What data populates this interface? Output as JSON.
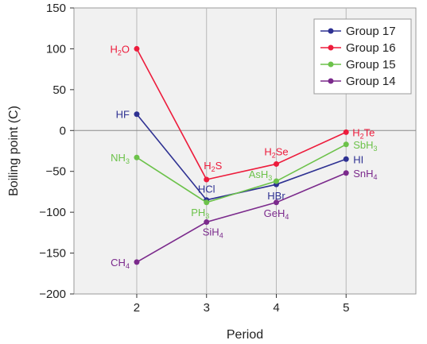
{
  "chart_data": {
    "type": "line",
    "title": "",
    "xlabel": "Period",
    "ylabel": "Boiling point (C)",
    "x": [
      2,
      3,
      4,
      5
    ],
    "xlim": [
      1.1,
      6
    ],
    "ylim": [
      -200,
      150
    ],
    "xticks": [
      "2",
      "3",
      "4",
      "5"
    ],
    "yticks": [
      "150",
      "100",
      "50",
      "0",
      "−50",
      "−100",
      "−150",
      "−200"
    ],
    "grid": "vertical",
    "legend_position": "top-right",
    "series": [
      {
        "name": "Group 17",
        "color": "#2e3192",
        "values": [
          20,
          -85,
          -66,
          -35
        ],
        "point_labels": [
          [
            {
              "t": "HF"
            }
          ],
          [
            {
              "t": "HCl"
            }
          ],
          [
            {
              "t": "HBr"
            }
          ],
          [
            {
              "t": "HI"
            }
          ]
        ]
      },
      {
        "name": "Group 16",
        "color": "#ed1c3c",
        "values": [
          100,
          -60,
          -41,
          -2
        ],
        "point_labels": [
          [
            {
              "t": "H"
            },
            {
              "t": "2",
              "sub": true
            },
            {
              "t": "O"
            }
          ],
          [
            {
              "t": "H"
            },
            {
              "t": "2",
              "sub": true
            },
            {
              "t": "S"
            }
          ],
          [
            {
              "t": "H"
            },
            {
              "t": "2",
              "sub": true
            },
            {
              "t": "Se"
            }
          ],
          [
            {
              "t": "H"
            },
            {
              "t": "2",
              "sub": true
            },
            {
              "t": "Te"
            }
          ]
        ]
      },
      {
        "name": "Group 15",
        "color": "#6cc24a",
        "values": [
          -33,
          -88,
          -62,
          -17
        ],
        "point_labels": [
          [
            {
              "t": "NH"
            },
            {
              "t": "3",
              "sub": true
            }
          ],
          [
            {
              "t": "PH"
            },
            {
              "t": "3",
              "sub": true
            }
          ],
          [
            {
              "t": "AsH"
            },
            {
              "t": "3",
              "sub": true
            }
          ],
          [
            {
              "t": "SbH"
            },
            {
              "t": "3",
              "sub": true
            }
          ]
        ]
      },
      {
        "name": "Group 14",
        "color": "#7b2a8c",
        "values": [
          -161,
          -112,
          -88,
          -52
        ],
        "point_labels": [
          [
            {
              "t": "CH"
            },
            {
              "t": "4",
              "sub": true
            }
          ],
          [
            {
              "t": "SiH"
            },
            {
              "t": "4",
              "sub": true
            }
          ],
          [
            {
              "t": "GeH"
            },
            {
              "t": "4",
              "sub": true
            }
          ],
          [
            {
              "t": "SnH"
            },
            {
              "t": "4",
              "sub": true
            }
          ]
        ]
      }
    ]
  }
}
